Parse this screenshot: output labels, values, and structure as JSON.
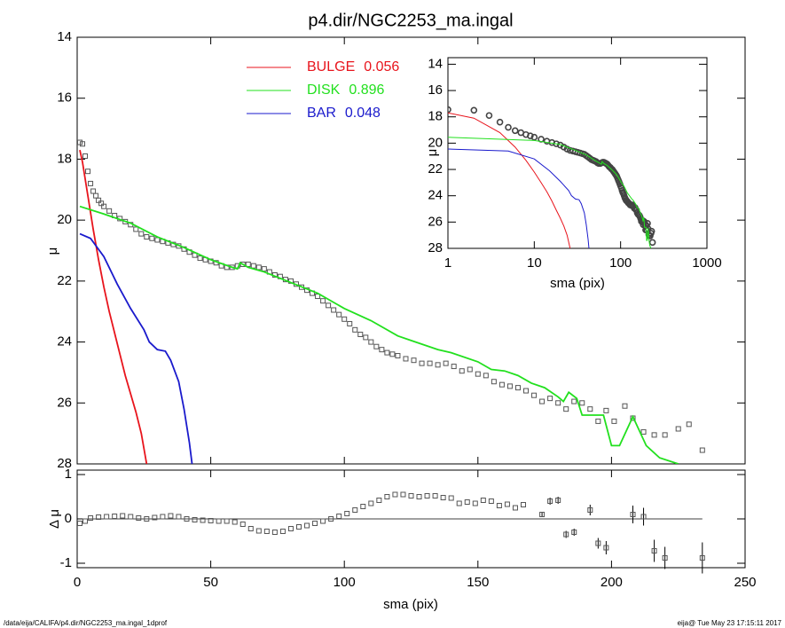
{
  "chart_data": [
    {
      "type": "line",
      "title": "p4.dir/NGC2253_ma.ingal",
      "ylabel": "μ",
      "xlim": [
        0,
        250
      ],
      "ylim": [
        28,
        14
      ],
      "yticks": [
        14,
        16,
        18,
        20,
        22,
        24,
        26,
        28
      ],
      "series": [
        {
          "color": "#555555",
          "x": [
            1,
            2,
            3,
            4,
            5,
            6,
            7,
            8,
            9,
            10,
            12,
            14,
            16,
            18,
            20,
            22,
            24,
            26,
            28,
            30,
            32,
            34,
            36,
            38,
            40,
            42,
            44,
            46,
            48,
            50,
            52,
            54,
            56,
            58,
            60,
            62,
            64,
            66,
            68,
            70,
            72,
            74,
            76,
            78,
            80,
            82,
            84,
            86,
            88,
            90,
            92,
            94,
            96,
            98,
            100,
            102,
            104,
            106,
            108,
            110,
            112,
            114,
            116,
            118,
            120,
            123,
            126,
            129,
            132,
            135,
            138,
            141,
            144,
            147,
            150,
            153,
            156,
            159,
            162,
            165,
            168,
            171,
            174,
            177,
            180,
            183,
            186,
            189,
            192,
            195,
            198,
            201,
            205,
            208,
            212,
            216,
            220,
            225,
            229,
            234
          ],
          "values": [
            17.45,
            17.5,
            17.9,
            18.4,
            18.8,
            19.05,
            19.2,
            19.35,
            19.45,
            19.55,
            19.7,
            19.85,
            19.95,
            20.05,
            20.15,
            20.3,
            20.45,
            20.55,
            20.6,
            20.65,
            20.7,
            20.75,
            20.8,
            20.85,
            20.95,
            21.05,
            21.15,
            21.25,
            21.3,
            21.35,
            21.4,
            21.5,
            21.55,
            21.55,
            21.5,
            21.45,
            21.45,
            21.5,
            21.55,
            21.6,
            21.7,
            21.8,
            21.85,
            21.95,
            22.0,
            22.1,
            22.2,
            22.3,
            22.4,
            22.5,
            22.65,
            22.8,
            22.95,
            23.1,
            23.25,
            23.4,
            23.6,
            23.75,
            23.85,
            24.0,
            24.15,
            24.25,
            24.35,
            24.4,
            24.45,
            24.55,
            24.6,
            24.7,
            24.7,
            24.75,
            24.7,
            24.8,
            24.95,
            24.9,
            25.05,
            25.1,
            25.3,
            25.4,
            25.45,
            25.5,
            25.6,
            25.75,
            25.95,
            25.85,
            26.0,
            26.2,
            25.95,
            26.0,
            26.2,
            26.6,
            26.25,
            26.6,
            26.1,
            26.5,
            26.95,
            27.05,
            27.05,
            26.85,
            26.7,
            27.55
          ]
        },
        {
          "name": "BULGE",
          "fraction": 0.056,
          "color": "#e8141c",
          "x": [
            1,
            2,
            4,
            6,
            8,
            10,
            12,
            14,
            16,
            18,
            20,
            22,
            24,
            25,
            26
          ],
          "values": [
            17.7,
            18.1,
            19.2,
            20.3,
            21.3,
            22.2,
            23.0,
            23.7,
            24.4,
            25.1,
            25.7,
            26.3,
            27.0,
            27.5,
            28.0
          ]
        },
        {
          "name": "DISK",
          "fraction": 0.896,
          "color": "#22e01e",
          "x": [
            1,
            10,
            20,
            30,
            40,
            50,
            58,
            60,
            61,
            64,
            70,
            80,
            90,
            100,
            110,
            120,
            125,
            130,
            135,
            140,
            150,
            155,
            160,
            165,
            170,
            175,
            180,
            182,
            184,
            187,
            189,
            197,
            200,
            203,
            208,
            213,
            218,
            225
          ],
          "values": [
            19.55,
            19.8,
            20.1,
            20.55,
            20.9,
            21.3,
            21.55,
            21.6,
            21.4,
            21.55,
            21.7,
            22.05,
            22.4,
            22.9,
            23.3,
            23.8,
            23.95,
            24.1,
            24.25,
            24.35,
            24.65,
            24.9,
            24.95,
            25.1,
            25.35,
            25.5,
            25.8,
            25.95,
            25.65,
            25.85,
            26.4,
            26.4,
            27.4,
            27.4,
            26.45,
            27.4,
            27.8,
            28.0
          ]
        },
        {
          "name": "BAR",
          "fraction": 0.048,
          "color": "#1a1acc",
          "x": [
            1,
            5,
            10,
            15,
            20,
            25,
            27,
            30,
            33,
            35,
            38,
            40,
            42,
            43
          ],
          "values": [
            20.45,
            20.6,
            21.2,
            22.1,
            22.9,
            23.6,
            24.0,
            24.25,
            24.3,
            24.6,
            25.3,
            26.2,
            27.3,
            28.0
          ]
        }
      ]
    },
    {
      "type": "scatter",
      "ylabel": "Δ μ",
      "xlabel": "sma (pix)",
      "xlim": [
        0,
        250
      ],
      "xticks": [
        0,
        50,
        100,
        150,
        200,
        250
      ],
      "ylim": [
        -1.1,
        1.1
      ],
      "yticks": [
        -1,
        0,
        1
      ],
      "x": [
        1,
        3,
        5,
        8,
        11,
        14,
        17,
        20,
        23,
        26,
        29,
        32,
        35,
        38,
        41,
        44,
        47,
        50,
        53,
        56,
        59,
        62,
        65,
        68,
        71,
        74,
        77,
        80,
        83,
        86,
        89,
        92,
        95,
        98,
        101,
        104,
        107,
        110,
        113,
        116,
        119,
        122,
        125,
        128,
        131,
        134,
        137,
        140,
        143,
        146,
        149,
        152,
        155,
        158,
        161,
        164,
        167,
        174,
        177,
        180,
        183,
        186,
        192,
        195,
        198,
        208,
        212,
        216,
        220,
        234
      ],
      "values": [
        -0.1,
        -0.05,
        0.02,
        0.04,
        0.05,
        0.06,
        0.07,
        0.05,
        0.02,
        0,
        0.03,
        0.05,
        0.07,
        0.05,
        0,
        -0.02,
        -0.03,
        -0.04,
        -0.05,
        -0.05,
        -0.07,
        -0.12,
        -0.22,
        -0.27,
        -0.28,
        -0.3,
        -0.28,
        -0.22,
        -0.18,
        -0.15,
        -0.1,
        -0.05,
        0,
        0.06,
        0.12,
        0.2,
        0.28,
        0.35,
        0.42,
        0.5,
        0.55,
        0.55,
        0.52,
        0.5,
        0.52,
        0.52,
        0.48,
        0.47,
        0.35,
        0.38,
        0.35,
        0.42,
        0.4,
        0.3,
        0.33,
        0.25,
        0.32,
        0.1,
        0.4,
        0.42,
        -0.35,
        -0.3,
        0.2,
        -0.55,
        -0.65,
        0.1,
        0.05,
        -0.72,
        -0.88,
        -0.88
      ],
      "errors": [
        null,
        null,
        null,
        null,
        null,
        null,
        null,
        null,
        null,
        null,
        null,
        null,
        null,
        null,
        null,
        null,
        null,
        null,
        null,
        null,
        null,
        null,
        null,
        null,
        null,
        null,
        null,
        null,
        null,
        null,
        null,
        null,
        null,
        null,
        null,
        null,
        null,
        null,
        null,
        null,
        null,
        null,
        null,
        null,
        null,
        null,
        null,
        null,
        null,
        null,
        null,
        null,
        null,
        null,
        null,
        null,
        null,
        0.05,
        0.08,
        0.08,
        0.08,
        0.08,
        0.12,
        0.12,
        0.15,
        0.2,
        0.2,
        0.25,
        0.25,
        0.35
      ]
    },
    {
      "type": "line",
      "xlog": true,
      "xlabel": "sma (pix)",
      "ylabel": "μ",
      "xlim": [
        1,
        1000
      ],
      "xticks": [
        1,
        10,
        100,
        1000
      ],
      "ylim": [
        28,
        13.5
      ],
      "yticks": [
        14,
        16,
        18,
        20,
        22,
        24,
        26,
        28
      ]
    }
  ],
  "footer": {
    "left": "/data/eija/CALIFA/p4.dir/NGC2253_ma.ingal_1dprof",
    "right": "eija@  Tue May 23 17:15:11 2017"
  }
}
